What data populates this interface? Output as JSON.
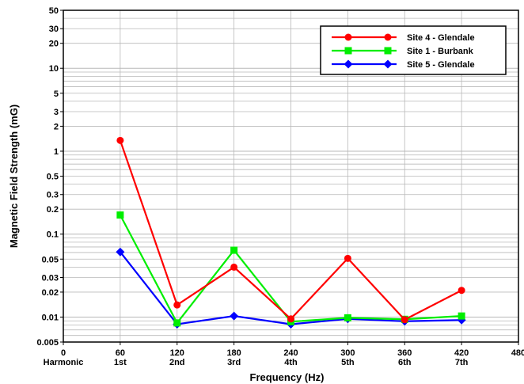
{
  "chart_data": {
    "type": "line",
    "title": "",
    "xlabel": "Frequency (Hz)",
    "ylabel": "Magnetic Field Strength (mG)",
    "yscale": "log",
    "xlim": [
      0,
      480
    ],
    "ylim": [
      0.005,
      50
    ],
    "grid": true,
    "legend_position": "top-right",
    "x_ticks": [
      {
        "value": 0,
        "label": "0",
        "harmonic": "Harmonic"
      },
      {
        "value": 60,
        "label": "60",
        "harmonic": "1st"
      },
      {
        "value": 120,
        "label": "120",
        "harmonic": "2nd"
      },
      {
        "value": 180,
        "label": "180",
        "harmonic": "3rd"
      },
      {
        "value": 240,
        "label": "240",
        "harmonic": "4th"
      },
      {
        "value": 300,
        "label": "300",
        "harmonic": "5th"
      },
      {
        "value": 360,
        "label": "360",
        "harmonic": "6th"
      },
      {
        "value": 420,
        "label": "420",
        "harmonic": "7th"
      },
      {
        "value": 480,
        "label": "480",
        "harmonic": ""
      }
    ],
    "y_ticks": [
      {
        "value": 50,
        "label": "50"
      },
      {
        "value": 30,
        "label": "30"
      },
      {
        "value": 20,
        "label": "20"
      },
      {
        "value": 10,
        "label": "10"
      },
      {
        "value": 5,
        "label": "5"
      },
      {
        "value": 3,
        "label": "3"
      },
      {
        "value": 2,
        "label": "2"
      },
      {
        "value": 1,
        "label": "1"
      },
      {
        "value": 0.5,
        "label": "0.5"
      },
      {
        "value": 0.3,
        "label": "0.3"
      },
      {
        "value": 0.2,
        "label": "0.2"
      },
      {
        "value": 0.1,
        "label": "0.1"
      },
      {
        "value": 0.05,
        "label": "0.05"
      },
      {
        "value": 0.03,
        "label": "0.03"
      },
      {
        "value": 0.02,
        "label": "0.02"
      },
      {
        "value": 0.01,
        "label": "0.01"
      },
      {
        "value": 0.005,
        "label": "0.005"
      }
    ],
    "x": [
      60,
      120,
      180,
      240,
      300,
      360,
      420
    ],
    "series": [
      {
        "name": "Site 4 - Glendale",
        "color": "#ff0000",
        "marker": "circle",
        "values": [
          1.35,
          0.014,
          0.04,
          0.0095,
          0.051,
          0.0093,
          0.021
        ]
      },
      {
        "name": "Site 1 - Burbank",
        "color": "#00ee00",
        "marker": "square",
        "values": [
          0.17,
          0.0085,
          0.064,
          0.0088,
          0.0098,
          0.0094,
          0.0103
        ]
      },
      {
        "name": "Site 5 - Glendale",
        "color": "#0000ff",
        "marker": "diamond",
        "values": [
          0.061,
          0.0082,
          0.0103,
          0.0082,
          0.0095,
          0.0089,
          0.0092
        ]
      }
    ]
  }
}
